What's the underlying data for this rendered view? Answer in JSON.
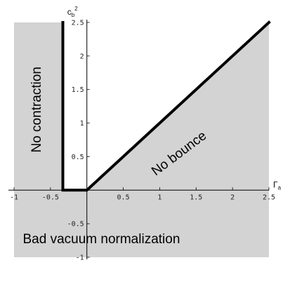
{
  "chart_data": {
    "type": "line",
    "xlim": [
      -1,
      2.5
    ],
    "ylim": [
      -1,
      2.5
    ],
    "x_ticks": [
      "-1",
      "-0.5",
      "0.5",
      "1",
      "1.5",
      "2",
      "2.5"
    ],
    "x_tick_values": [
      -1,
      -0.5,
      0.5,
      1,
      1.5,
      2,
      2.5
    ],
    "y_ticks": [
      "-1",
      "-0.5",
      "0.5",
      "1",
      "1.5",
      "2",
      "2.5"
    ],
    "y_tick_values": [
      -1,
      -0.5,
      0.5,
      1,
      1.5,
      2,
      2.5
    ],
    "xlabel": {
      "base": "Γ",
      "sub": "a"
    },
    "ylabel": {
      "base": "c",
      "sub": "b",
      "sup": "2"
    },
    "grid": false,
    "boundary": {
      "x": [
        -0.33,
        -0.33,
        0,
        2.5
      ],
      "y": [
        2.5,
        0,
        0,
        2.5
      ]
    },
    "shaded_regions": [
      {
        "name": "no-contraction-region",
        "polygon": [
          [
            -1,
            0
          ],
          [
            -1,
            2.5
          ],
          [
            -0.33,
            2.5
          ],
          [
            -0.33,
            0
          ]
        ]
      },
      {
        "name": "no-bounce-region",
        "polygon": [
          [
            0,
            0
          ],
          [
            2.5,
            0
          ],
          [
            2.5,
            2.5
          ]
        ]
      },
      {
        "name": "bad-vacuum-region",
        "polygon": [
          [
            -1,
            -1
          ],
          [
            2.5,
            -1
          ],
          [
            2.5,
            0
          ],
          [
            -1,
            0
          ]
        ]
      }
    ],
    "annotations": [
      {
        "name": "no-contraction",
        "text": "No contraction",
        "x": -0.68,
        "y": 1.2,
        "rotation": -90
      },
      {
        "name": "no-bounce",
        "text": "No bounce",
        "x": 1.27,
        "y": 0.54,
        "rotation": -37
      },
      {
        "name": "bad-vacuum",
        "text": "Bad vacuum normalization",
        "x": 0.2,
        "y": -0.74,
        "rotation": 0
      }
    ],
    "colors": {
      "shade": "#d3d3d3",
      "boundary": "#000000",
      "axis": "#000000"
    }
  }
}
